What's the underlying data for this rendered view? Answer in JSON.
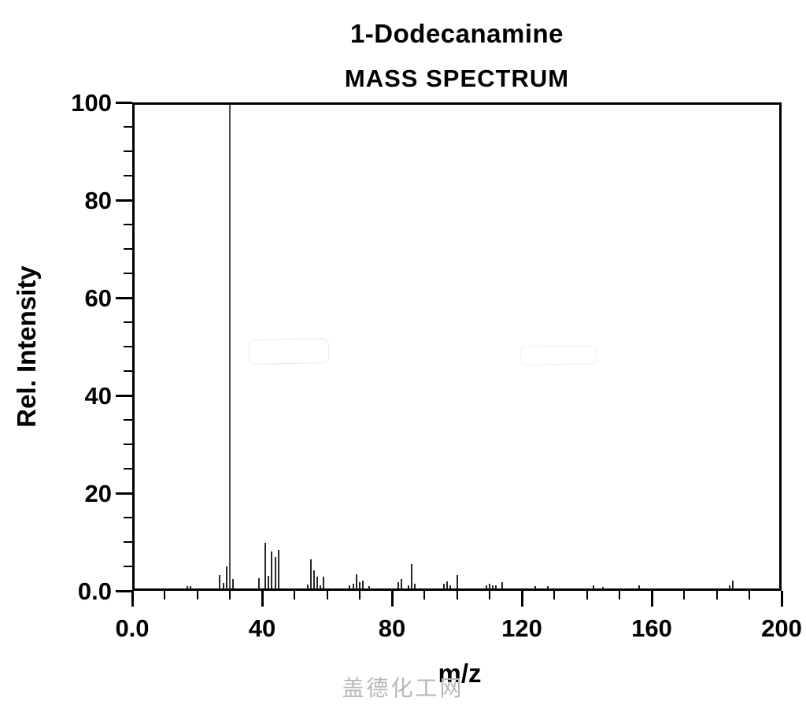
{
  "page": {
    "watermark_text": "盖德化工网"
  },
  "colors": {
    "bar": "#262626",
    "base_peak_bar": "#4f4f4f",
    "axis": "#000000",
    "watermark_gray": "#b8b8b8"
  },
  "chart_data": {
    "type": "bar",
    "title": "1-Dodecanamine",
    "subtitle": "MASS SPECTRUM",
    "xlabel": "m/z",
    "ylabel": "Rel. Intensity",
    "xlim": [
      0,
      200
    ],
    "ylim": [
      0,
      100
    ],
    "grid": false,
    "x_major_ticks": [
      0,
      40,
      80,
      120,
      160,
      200
    ],
    "x_tick_labels": [
      "0.0",
      "40",
      "80",
      "120",
      "160",
      "200"
    ],
    "x_minor_step": 10,
    "y_major_ticks": [
      0,
      20,
      40,
      60,
      80,
      100
    ],
    "y_tick_labels": [
      "0.0",
      "20",
      "40",
      "60",
      "80",
      "100"
    ],
    "y_minor_step": 5,
    "peaks": [
      [
        17,
        0.5
      ],
      [
        18,
        0.5
      ],
      [
        27,
        2.7
      ],
      [
        28,
        1.2
      ],
      [
        29,
        4.6
      ],
      [
        30,
        100
      ],
      [
        31,
        1.9
      ],
      [
        39,
        2.2
      ],
      [
        41,
        9.4
      ],
      [
        42,
        2.6
      ],
      [
        43,
        7.7
      ],
      [
        44,
        6.5
      ],
      [
        45,
        8.0
      ],
      [
        54,
        0.8
      ],
      [
        55,
        6.1
      ],
      [
        56,
        3.8
      ],
      [
        57,
        2.4
      ],
      [
        58,
        0.6
      ],
      [
        59,
        2.4
      ],
      [
        67,
        0.7
      ],
      [
        68,
        1.0
      ],
      [
        69,
        3.0
      ],
      [
        70,
        1.3
      ],
      [
        71,
        1.7
      ],
      [
        73,
        0.5
      ],
      [
        82,
        1.3
      ],
      [
        83,
        2.0
      ],
      [
        85,
        0.6
      ],
      [
        86,
        5.1
      ],
      [
        87,
        1.0
      ],
      [
        96,
        1.0
      ],
      [
        97,
        1.5
      ],
      [
        98,
        0.6
      ],
      [
        100,
        2.7
      ],
      [
        109,
        0.6
      ],
      [
        110,
        1.0
      ],
      [
        111,
        0.7
      ],
      [
        112,
        0.7
      ],
      [
        114,
        1.3
      ],
      [
        124,
        0.5
      ],
      [
        128,
        0.5
      ],
      [
        142,
        0.7
      ],
      [
        145,
        0.4
      ],
      [
        156,
        0.6
      ],
      [
        184,
        0.6
      ],
      [
        185,
        1.6
      ]
    ],
    "base_peak_mz": 30
  }
}
